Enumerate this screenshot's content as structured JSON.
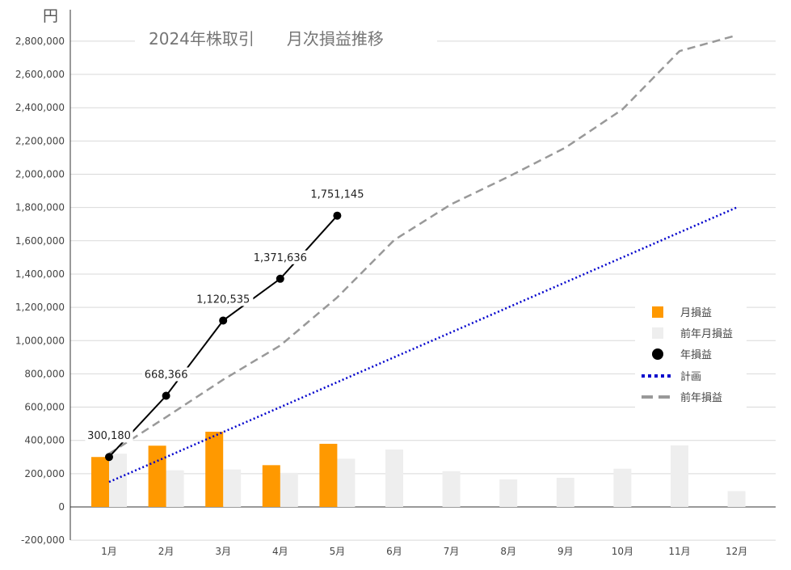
{
  "chart_data": {
    "type": "bar",
    "title": "2024年株取引　　月次損益推移",
    "ylabel": "円",
    "categories": [
      "1月",
      "2月",
      "3月",
      "4月",
      "5月",
      "6月",
      "7月",
      "8月",
      "9月",
      "10月",
      "11月",
      "12月"
    ],
    "ylim": [
      -200000,
      2900000
    ],
    "yticks": [
      -200000,
      0,
      200000,
      400000,
      600000,
      800000,
      1000000,
      1200000,
      1400000,
      1600000,
      1800000,
      2000000,
      2200000,
      2400000,
      2600000,
      2800000
    ],
    "ytick_labels": [
      "-200,000",
      "0",
      "200,000",
      "400,000",
      "600,000",
      "800,000",
      "1,000,000",
      "1,200,000",
      "1,400,000",
      "1,600,000",
      "1,800,000",
      "2,000,000",
      "2,200,000",
      "2,400,000",
      "2,600,000",
      "2,800,000"
    ],
    "grid": true,
    "legend_position": "right",
    "series": [
      {
        "name": "月損益",
        "kind": "bar",
        "color": "#ff9900",
        "values": [
          300180,
          368186,
          452169,
          251101,
          379509,
          null,
          null,
          null,
          null,
          null,
          null,
          null
        ]
      },
      {
        "name": "前年月損益",
        "kind": "bar",
        "color": "#eeeeee",
        "values": [
          320000,
          220000,
          225000,
          205000,
          290000,
          345000,
          215000,
          165000,
          175000,
          230000,
          370000,
          95000
        ]
      },
      {
        "name": "年損益",
        "kind": "line-markers",
        "color": "#000000",
        "values": [
          300180,
          668366,
          1120535,
          1371636,
          1751145,
          null,
          null,
          null,
          null,
          null,
          null,
          null
        ],
        "labels": [
          "300,180",
          "668,366",
          "1,120,535",
          "1,371,636",
          "1,751,145"
        ]
      },
      {
        "name": "計画",
        "kind": "dotted-line",
        "color": "#0000cc",
        "values": [
          150000,
          300000,
          450000,
          600000,
          750000,
          900000,
          1050000,
          1200000,
          1350000,
          1500000,
          1650000,
          1800000
        ]
      },
      {
        "name": "前年損益",
        "kind": "dashed-line",
        "color": "#999999",
        "values": [
          320000,
          540000,
          765000,
          970000,
          1260000,
          1605000,
          1820000,
          1985000,
          2160000,
          2390000,
          2740000,
          2835000
        ]
      }
    ]
  }
}
